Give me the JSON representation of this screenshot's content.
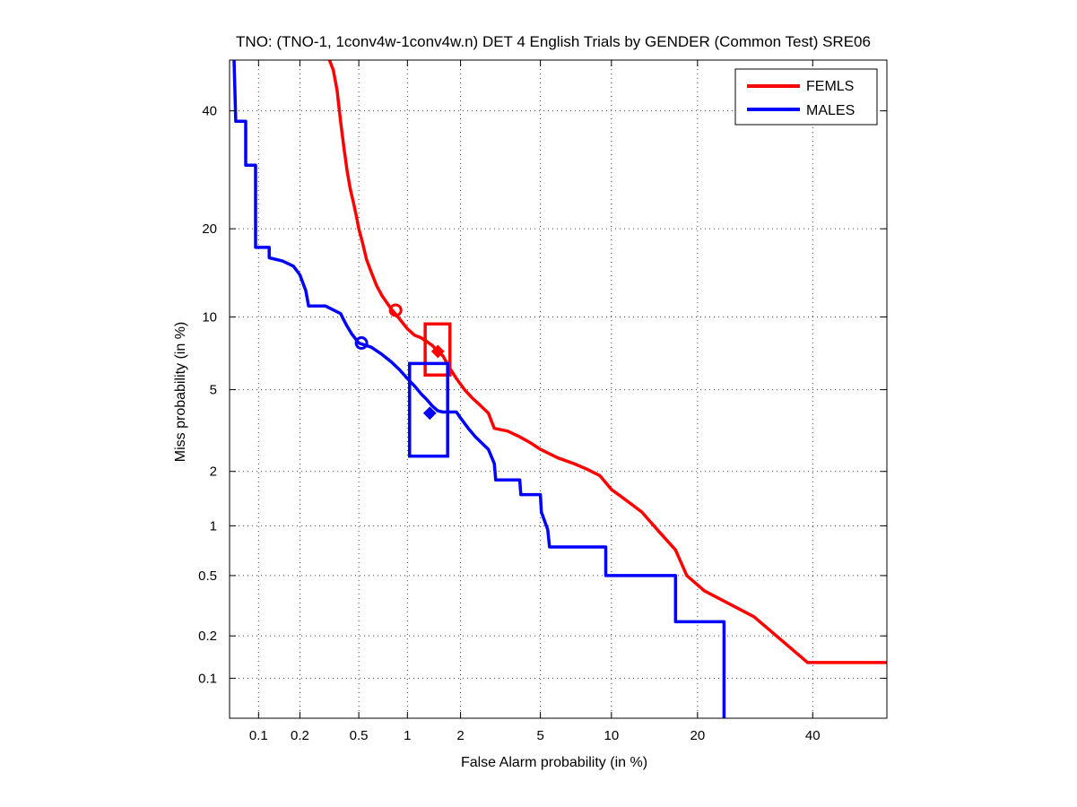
{
  "chart_data": {
    "type": "line",
    "title": "TNO: (TNO-1, 1conv4w-1conv4w.n) DET 4 English Trials by GENDER (Common Test) SRE06",
    "xlabel": "False Alarm probability (in %)",
    "ylabel": "Miss probability (in %)",
    "x_scale": "normal-deviate (probit)",
    "y_scale": "normal-deviate (probit)",
    "xlim": [
      0.06,
      55
    ],
    "ylim": [
      0.05,
      50
    ],
    "x_ticks": [
      0.1,
      0.2,
      0.5,
      1,
      2,
      5,
      10,
      20,
      40
    ],
    "x_tick_labels": [
      "0.1",
      "0.2",
      "0.5",
      "1",
      "2",
      "5",
      "10",
      "20",
      "40"
    ],
    "y_ticks": [
      0.1,
      0.2,
      0.5,
      1,
      2,
      5,
      10,
      20,
      40
    ],
    "y_tick_labels": [
      "0.1",
      "0.2",
      "0.5",
      "1",
      "2",
      "5",
      "10",
      "20",
      "40"
    ],
    "grid": true,
    "legend_position": "top-right",
    "series": [
      {
        "name": "FEMLS",
        "color": "#ff0000",
        "points": [
          [
            0.3,
            52
          ],
          [
            0.32,
            50
          ],
          [
            0.34,
            48
          ],
          [
            0.36,
            44
          ],
          [
            0.38,
            38
          ],
          [
            0.4,
            33
          ],
          [
            0.42,
            29
          ],
          [
            0.44,
            26
          ],
          [
            0.46,
            24
          ],
          [
            0.48,
            22
          ],
          [
            0.5,
            20
          ],
          [
            0.53,
            18
          ],
          [
            0.56,
            16
          ],
          [
            0.6,
            14.5
          ],
          [
            0.65,
            13
          ],
          [
            0.7,
            12
          ],
          [
            0.8,
            10.7
          ],
          [
            0.9,
            9.8
          ],
          [
            1.0,
            9.0
          ],
          [
            1.1,
            8.5
          ],
          [
            1.2,
            8.3
          ],
          [
            1.3,
            8.0
          ],
          [
            1.4,
            7.7
          ],
          [
            1.5,
            7.3
          ],
          [
            1.6,
            7.0
          ],
          [
            1.75,
            6.2
          ],
          [
            1.9,
            5.6
          ],
          [
            2.1,
            5.0
          ],
          [
            2.3,
            4.6
          ],
          [
            2.5,
            4.3
          ],
          [
            2.8,
            3.9
          ],
          [
            3.0,
            3.3
          ],
          [
            3.5,
            3.2
          ],
          [
            4.0,
            3.0
          ],
          [
            4.5,
            2.8
          ],
          [
            5.0,
            2.6
          ],
          [
            6.0,
            2.35
          ],
          [
            7.0,
            2.2
          ],
          [
            8.0,
            2.05
          ],
          [
            9.0,
            1.9
          ],
          [
            10.0,
            1.6
          ],
          [
            11.0,
            1.45
          ],
          [
            13.0,
            1.2
          ],
          [
            15.0,
            0.92
          ],
          [
            17.0,
            0.72
          ],
          [
            18.5,
            0.5
          ],
          [
            21.0,
            0.4
          ],
          [
            29.0,
            0.27
          ],
          [
            39.0,
            0.13
          ],
          [
            55.0,
            0.13
          ]
        ]
      },
      {
        "name": "MALES",
        "color": "#0000ff",
        "points": [
          [
            0.065,
            50
          ],
          [
            0.067,
            38
          ],
          [
            0.08,
            38
          ],
          [
            0.08,
            30
          ],
          [
            0.095,
            30
          ],
          [
            0.095,
            17.5
          ],
          [
            0.12,
            17.5
          ],
          [
            0.12,
            16.2
          ],
          [
            0.15,
            15.8
          ],
          [
            0.18,
            15.2
          ],
          [
            0.2,
            14.2
          ],
          [
            0.22,
            12.5
          ],
          [
            0.23,
            11.0
          ],
          [
            0.3,
            11.0
          ],
          [
            0.38,
            10.3
          ],
          [
            0.4,
            9.7
          ],
          [
            0.42,
            9.2
          ],
          [
            0.45,
            8.6
          ],
          [
            0.5,
            7.9
          ],
          [
            0.6,
            7.6
          ],
          [
            0.7,
            7.1
          ],
          [
            0.8,
            6.6
          ],
          [
            0.9,
            6.1
          ],
          [
            1.0,
            5.6
          ],
          [
            1.1,
            5.2
          ],
          [
            1.2,
            4.8
          ],
          [
            1.3,
            4.5
          ],
          [
            1.4,
            4.2
          ],
          [
            1.5,
            4.0
          ],
          [
            1.6,
            3.95
          ],
          [
            1.9,
            3.95
          ],
          [
            2.0,
            3.7
          ],
          [
            2.2,
            3.3
          ],
          [
            2.4,
            3.0
          ],
          [
            2.8,
            2.6
          ],
          [
            3.0,
            2.2
          ],
          [
            3.05,
            1.8
          ],
          [
            4.0,
            1.8
          ],
          [
            4.05,
            1.5
          ],
          [
            5.0,
            1.5
          ],
          [
            5.05,
            1.2
          ],
          [
            5.4,
            0.95
          ],
          [
            5.5,
            0.75
          ],
          [
            9.5,
            0.75
          ],
          [
            9.5,
            0.5
          ],
          [
            17.0,
            0.5
          ],
          [
            17.0,
            0.25
          ],
          [
            24.0,
            0.25
          ],
          [
            24.0,
            0.05
          ]
        ]
      }
    ],
    "operating_points": [
      {
        "series": "FEMLS",
        "marker": "circle",
        "x": 0.85,
        "y": 10.6
      },
      {
        "series": "FEMLS",
        "marker": "diamond",
        "x": 1.5,
        "y": 7.3
      },
      {
        "series": "MALES",
        "marker": "circle",
        "x": 0.52,
        "y": 7.9
      },
      {
        "series": "MALES",
        "marker": "diamond",
        "x": 1.35,
        "y": 3.9
      }
    ],
    "confidence_boxes": [
      {
        "series": "FEMLS",
        "x_range": [
          1.27,
          1.75
        ],
        "y_range": [
          5.8,
          9.4
        ]
      },
      {
        "series": "MALES",
        "x_range": [
          1.03,
          1.7
        ],
        "y_range": [
          2.4,
          6.5
        ]
      }
    ]
  }
}
